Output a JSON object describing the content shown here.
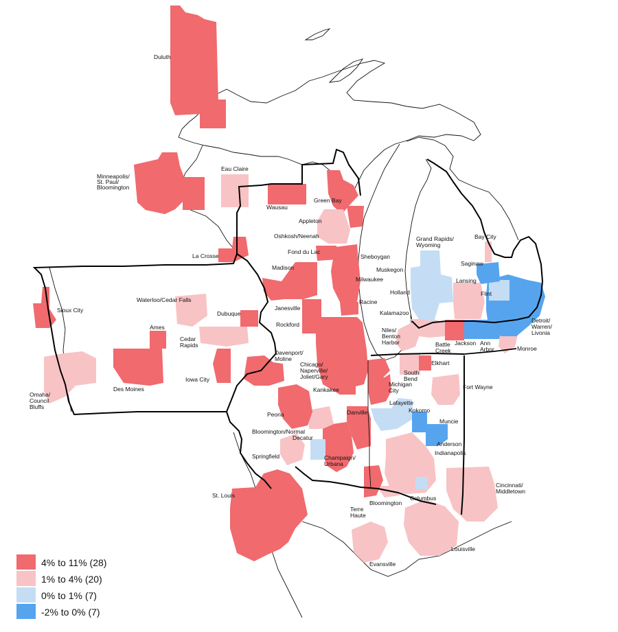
{
  "legend": {
    "items": [
      {
        "label": "4% to 11% (28)",
        "color": "#f06a6e"
      },
      {
        "label": "1% to 4% (20)",
        "color": "#f8c3c5"
      },
      {
        "label": "0% to 1% (7)",
        "color": "#c4ddf5"
      },
      {
        "label": "-2% to 0% (7)",
        "color": "#56a4ee"
      }
    ]
  },
  "cities": {
    "duluth": "Duluth",
    "minneapolis_1": "Minneapolis/",
    "minneapolis_2": "St. Paul/",
    "minneapolis_3": "Bloomington",
    "eau_claire": "Eau Claire",
    "wausau": "Wausau",
    "green_bay": "Green Bay",
    "appleton": "Appleton",
    "oshkosh": "Oshkosh/Neenah",
    "fond_du_lac": "Fond du Lac",
    "sheboygan": "Sheboygan",
    "la_crosse": "La Crosse",
    "madison": "Madison",
    "milwaukee": "Milwaukee",
    "janesville": "Janesville",
    "racine": "Racine",
    "rockford": "Rockford",
    "sioux_city": "Sioux City",
    "waterloo": "Waterloo/Cedar Falls",
    "dubuque": "Dubuque",
    "ames": "Ames",
    "cedar_rapids_1": "Cedar",
    "cedar_rapids_2": "Rapids",
    "des_moines": "Des Moines",
    "iowa_city": "Iowa City",
    "davenport_1": "Davenport/",
    "davenport_2": "Moline",
    "chicago_1": "Chicago/",
    "chicago_2": "Naperville/",
    "chicago_3": "Joliet/Gary",
    "kankakee": "Kankakee",
    "omaha_1": "Omaha/",
    "omaha_2": "Council",
    "omaha_3": "Bluffs",
    "peoria": "Peoria",
    "bloomington_normal": "Bloomington/Normal",
    "decatur": "Decatur",
    "danville": "Danville",
    "champaign_1": "Champaign/",
    "champaign_2": "Urbana",
    "springfield": "Springfield",
    "st_louis": "St. Louis",
    "terre_haute_1": "Terre",
    "terre_haute_2": "Haute",
    "bloomington_in": "Bloomington",
    "columbus": "Columbus",
    "evansville": "Evansville",
    "louisville": "Louisville",
    "cincinnati_1": "Cincinnati/",
    "cincinnati_2": "Middletown",
    "indianapolis": "Indianapolis",
    "anderson": "Anderson",
    "muncie": "Muncie",
    "kokomo": "Kokomo",
    "lafayette": "Lafayette",
    "fort_wayne": "Fort Wayne",
    "michigan_city_1": "Michigan",
    "michigan_city_2": "City",
    "south_bend_1": "South",
    "south_bend_2": "Bend",
    "elkhart": "Elkhart",
    "niles_1": "Niles/",
    "niles_2": "Benton",
    "niles_3": "Harbor",
    "kalamazoo": "Kalamazoo",
    "battle_creek_1": "Battle",
    "battle_creek_2": "Creek",
    "jackson": "Jackson",
    "ann_arbor_1": "Ann",
    "ann_arbor_2": "Arbor",
    "monroe": "Monroe",
    "detroit_1": "Detroit/",
    "detroit_2": "Warren/",
    "detroit_3": "Livonia",
    "holland": "Holland",
    "muskegon": "Muskegon",
    "grand_rapids_1": "Grand Rapids/",
    "grand_rapids_2": "Wyoming",
    "lansing": "Lansing",
    "flint": "Flint",
    "saginaw": "Saginaw",
    "bay_city": "Bay City"
  }
}
